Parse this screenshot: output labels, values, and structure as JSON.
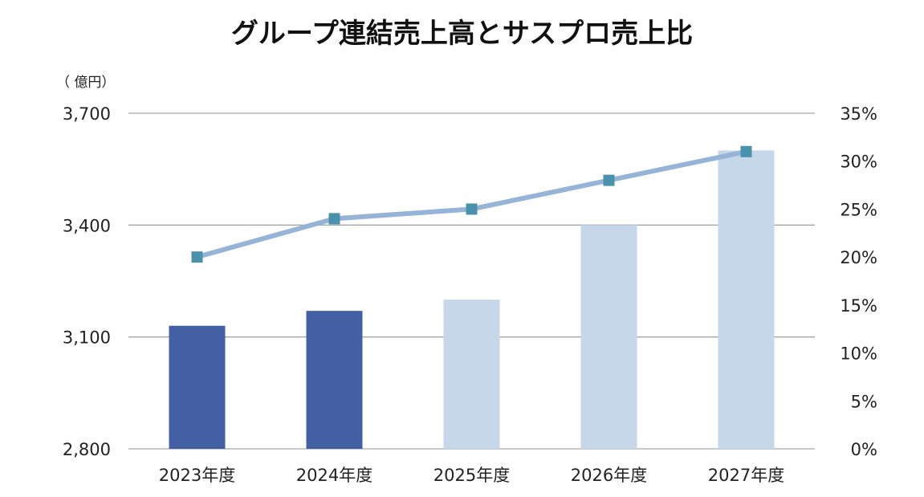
{
  "chart_data": {
    "type": "bar+line",
    "title": "グループ連結売上高とサスプロ売上比",
    "y_unit_label": "（ 億円）",
    "categories": [
      "2023年度",
      "2024年度",
      "2025年度",
      "2026年度",
      "2027年度"
    ],
    "series": [
      {
        "name": "グループ連結売上高",
        "type": "bar",
        "axis": "left",
        "values": [
          3130,
          3170,
          3200,
          3400,
          3600
        ],
        "colors": [
          "#4460a4",
          "#4460a4",
          "#c5d7e8",
          "#c5d7e8",
          "#c5d7e8"
        ]
      },
      {
        "name": "サスプロ売上比",
        "type": "line",
        "axis": "right",
        "values": [
          20,
          24,
          25,
          28,
          31
        ],
        "line_color": "#96b3d8",
        "marker_color": "#4a91ad"
      }
    ],
    "y_left": {
      "min": 2800,
      "max": 3700,
      "ticks": [
        2800,
        3100,
        3400,
        3700
      ],
      "tick_labels": [
        "2,800",
        "3,100",
        "3,400",
        "3,700"
      ]
    },
    "y_right": {
      "min": 0,
      "max": 35,
      "ticks": [
        0,
        5,
        10,
        15,
        20,
        25,
        30,
        35
      ],
      "tick_labels": [
        "0%",
        "5%",
        "10%",
        "15%",
        "20%",
        "25%",
        "30%",
        "35%"
      ]
    },
    "gridlines": true,
    "grid_color": "#a6a6a6"
  }
}
